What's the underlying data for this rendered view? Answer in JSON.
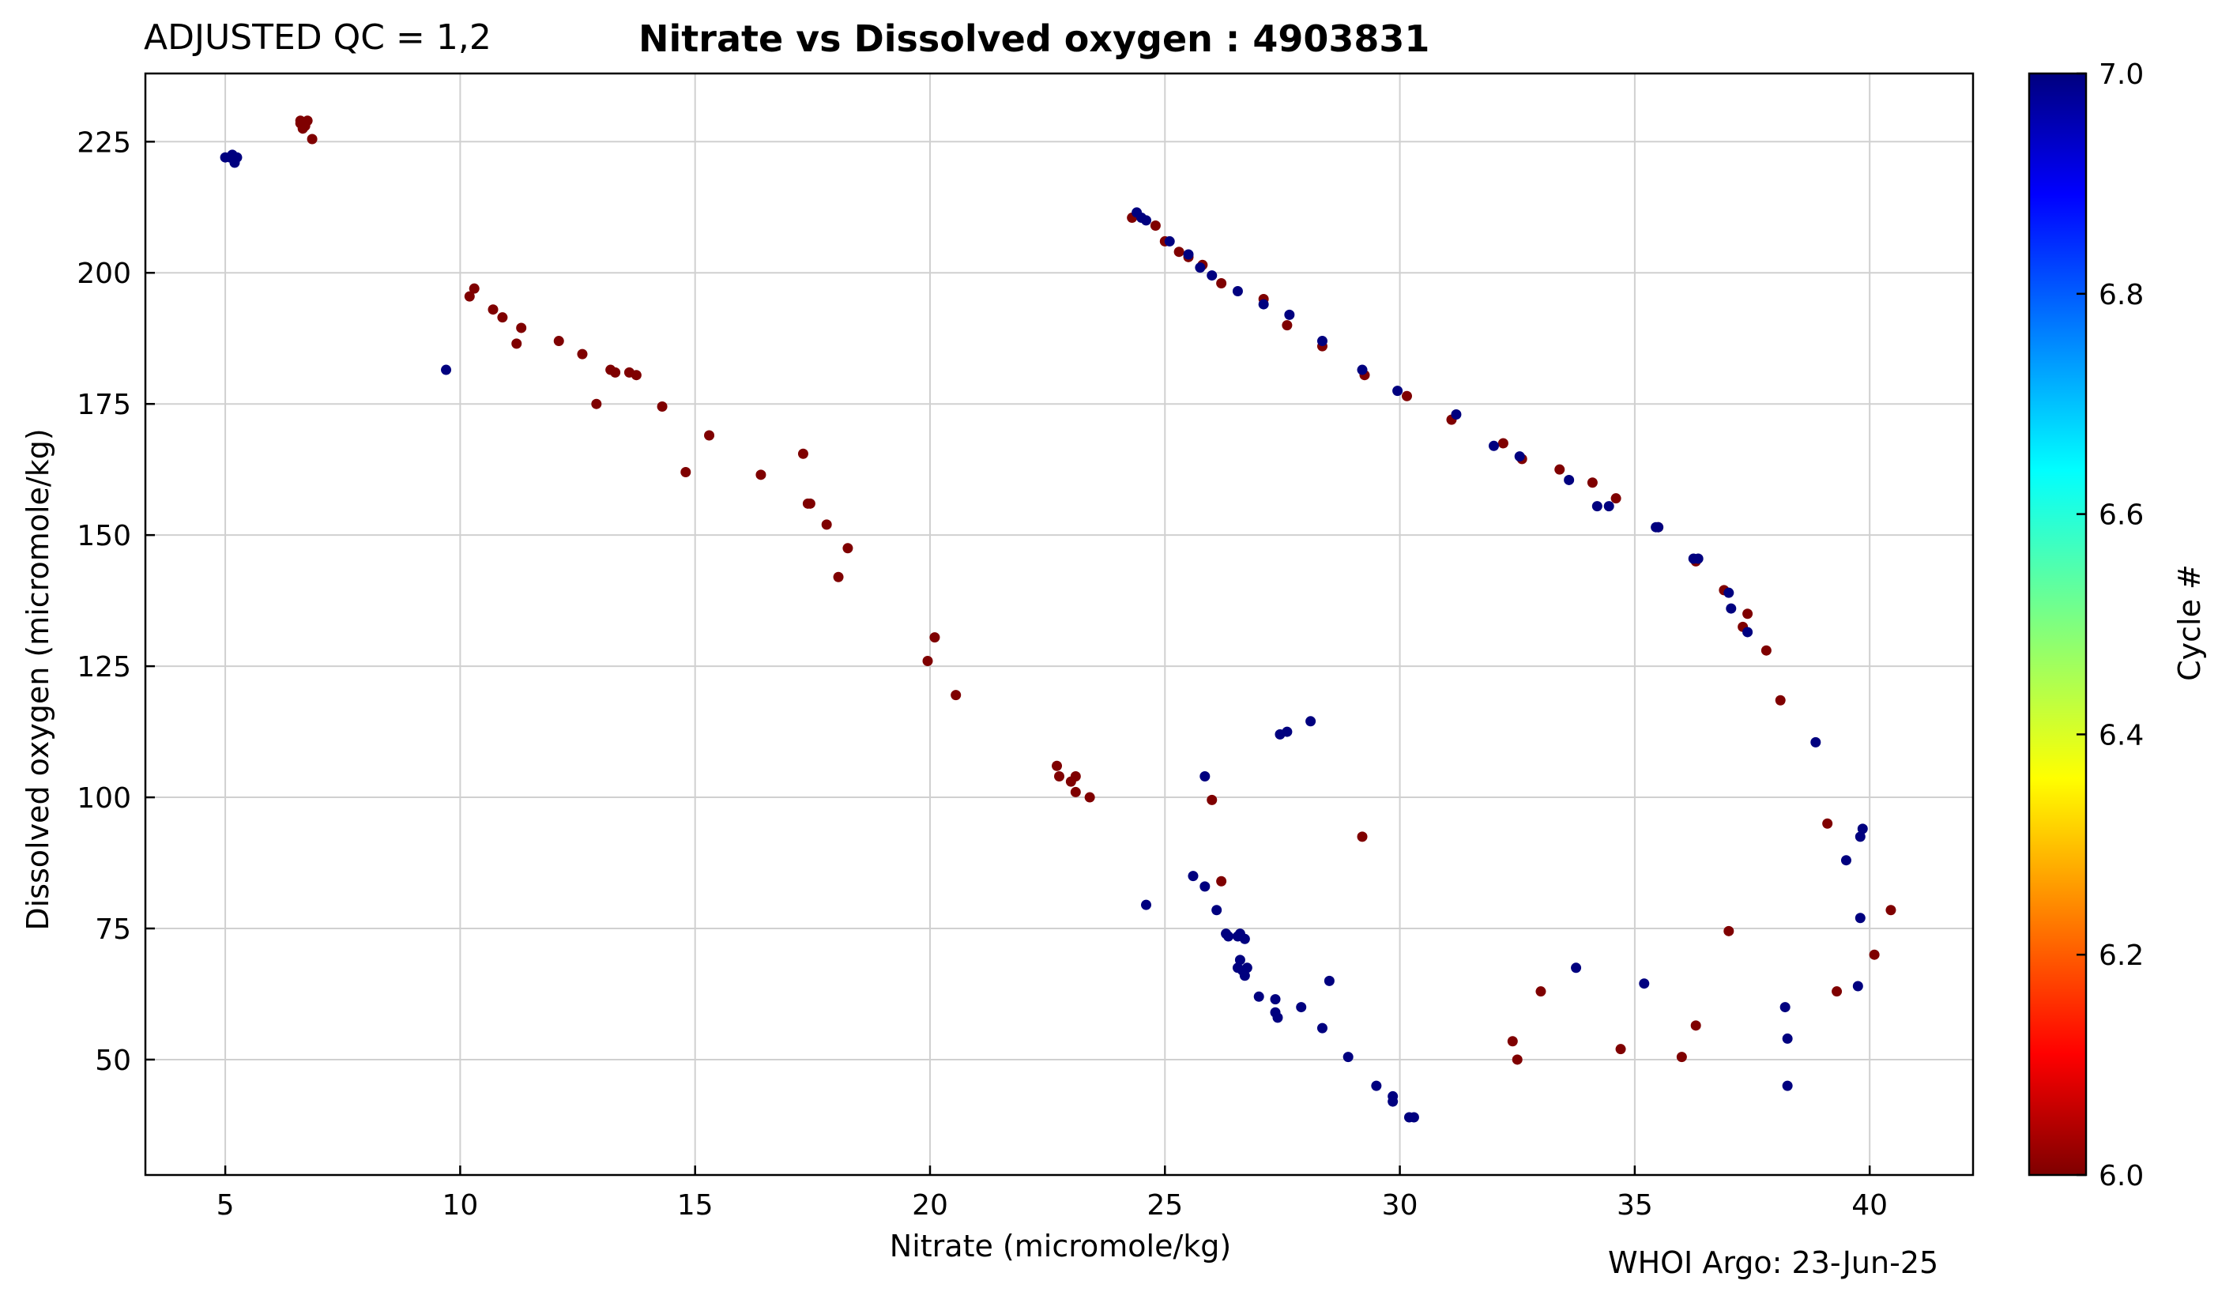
{
  "header": {
    "qc_label": "ADJUSTED QC = 1,2",
    "title": "Nitrate vs Dissolved oxygen : 4903831"
  },
  "footer": {
    "credit": "WHOI Argo: 23-Jun-25"
  },
  "colors": {
    "cycle_6": "#7f0000",
    "cycle_7": "#00007f",
    "grid": "#d0d0d0",
    "axis": "#000000"
  },
  "chart_data": {
    "type": "scatter",
    "title": "Nitrate vs Dissolved oxygen : 4903831",
    "xlabel": "Nitrate  (micromole/kg)",
    "ylabel": "Dissolved oxygen  (micromole/kg)",
    "xlim": [
      3.3,
      42.2
    ],
    "ylim": [
      28,
      238
    ],
    "x_ticks": [
      5,
      10,
      15,
      20,
      25,
      30,
      35,
      40
    ],
    "y_ticks": [
      50,
      75,
      100,
      125,
      150,
      175,
      200,
      225
    ],
    "grid": true,
    "colorbar": {
      "label": "Cycle #",
      "min": 6.0,
      "max": 7.0,
      "ticks": [
        6.0,
        6.2,
        6.4,
        6.6,
        6.8,
        7.0
      ],
      "colormap": "jet"
    },
    "series": [
      {
        "cycle": 6,
        "points": [
          [
            6.6,
            229
          ],
          [
            6.7,
            228
          ],
          [
            6.65,
            227.5
          ],
          [
            6.75,
            229
          ],
          [
            6.6,
            228.5
          ],
          [
            6.85,
            225.5
          ],
          [
            10.2,
            195.5
          ],
          [
            10.3,
            197
          ],
          [
            10.7,
            193
          ],
          [
            10.9,
            191.5
          ],
          [
            11.3,
            189.5
          ],
          [
            11.2,
            186.5
          ],
          [
            12.1,
            187
          ],
          [
            12.6,
            184.5
          ],
          [
            13.2,
            181.5
          ],
          [
            13.3,
            181
          ],
          [
            13.6,
            181
          ],
          [
            13.75,
            180.5
          ],
          [
            12.9,
            175
          ],
          [
            14.3,
            174.5
          ],
          [
            15.3,
            169
          ],
          [
            14.8,
            162
          ],
          [
            16.4,
            161.5
          ],
          [
            17.3,
            165.5
          ],
          [
            17.4,
            156
          ],
          [
            17.45,
            156
          ],
          [
            17.8,
            152
          ],
          [
            18.25,
            147.5
          ],
          [
            18.05,
            142
          ],
          [
            20.1,
            130.5
          ],
          [
            19.95,
            126
          ],
          [
            20.55,
            119.5
          ],
          [
            22.7,
            106
          ],
          [
            22.75,
            104
          ],
          [
            23.0,
            103
          ],
          [
            23.1,
            104
          ],
          [
            23.1,
            101
          ],
          [
            23.4,
            100
          ],
          [
            24.3,
            210.5
          ],
          [
            24.8,
            209
          ],
          [
            25.0,
            206
          ],
          [
            25.3,
            204
          ],
          [
            25.5,
            203
          ],
          [
            25.8,
            201.5
          ],
          [
            26.2,
            198
          ],
          [
            27.1,
            195
          ],
          [
            27.6,
            190
          ],
          [
            28.35,
            186
          ],
          [
            29.25,
            180.5
          ],
          [
            30.15,
            176.5
          ],
          [
            31.1,
            172
          ],
          [
            32.2,
            167.5
          ],
          [
            32.6,
            164.5
          ],
          [
            33.4,
            162.5
          ],
          [
            34.1,
            160
          ],
          [
            34.6,
            157
          ],
          [
            35.5,
            151.5
          ],
          [
            36.3,
            145
          ],
          [
            36.9,
            139.5
          ],
          [
            37.4,
            135
          ],
          [
            37.3,
            132.5
          ],
          [
            37.8,
            128
          ],
          [
            38.1,
            118.5
          ],
          [
            26.0,
            99.5
          ],
          [
            26.2,
            84
          ],
          [
            29.2,
            92.5
          ],
          [
            32.4,
            53.5
          ],
          [
            32.5,
            50
          ],
          [
            33.0,
            63
          ],
          [
            34.7,
            52
          ],
          [
            36.0,
            50.5
          ],
          [
            36.3,
            56.5
          ],
          [
            37.0,
            74.5
          ],
          [
            39.1,
            95
          ],
          [
            39.3,
            63
          ],
          [
            40.1,
            70
          ],
          [
            40.45,
            78.5
          ]
        ]
      },
      {
        "cycle": 7,
        "points": [
          [
            5.0,
            222
          ],
          [
            5.1,
            222
          ],
          [
            5.2,
            221.5
          ],
          [
            5.25,
            222
          ],
          [
            5.2,
            221
          ],
          [
            5.15,
            222.5
          ],
          [
            9.7,
            181.5
          ],
          [
            24.4,
            211.5
          ],
          [
            24.6,
            210
          ],
          [
            24.5,
            210.5
          ],
          [
            25.1,
            206
          ],
          [
            25.5,
            203.5
          ],
          [
            25.75,
            201
          ],
          [
            26.0,
            199.5
          ],
          [
            26.55,
            196.5
          ],
          [
            27.1,
            194
          ],
          [
            27.65,
            192
          ],
          [
            28.35,
            187
          ],
          [
            29.2,
            181.5
          ],
          [
            29.95,
            177.5
          ],
          [
            31.2,
            173
          ],
          [
            32.0,
            167
          ],
          [
            32.55,
            165
          ],
          [
            33.6,
            160.5
          ],
          [
            34.2,
            155.5
          ],
          [
            34.45,
            155.5
          ],
          [
            35.45,
            151.5
          ],
          [
            35.5,
            151.5
          ],
          [
            36.25,
            145.5
          ],
          [
            36.35,
            145.5
          ],
          [
            37.0,
            139
          ],
          [
            37.05,
            136
          ],
          [
            37.4,
            131.5
          ],
          [
            38.85,
            110.5
          ],
          [
            39.8,
            92.5
          ],
          [
            39.85,
            94
          ],
          [
            39.5,
            88
          ],
          [
            39.8,
            77
          ],
          [
            39.75,
            64
          ],
          [
            38.2,
            60
          ],
          [
            38.25,
            54
          ],
          [
            38.25,
            45
          ],
          [
            35.2,
            64.5
          ],
          [
            33.75,
            67.5
          ],
          [
            24.6,
            79.5
          ],
          [
            25.6,
            85
          ],
          [
            25.85,
            104
          ],
          [
            25.85,
            83
          ],
          [
            26.1,
            78.5
          ],
          [
            26.3,
            74
          ],
          [
            26.35,
            73.5
          ],
          [
            26.55,
            73.5
          ],
          [
            26.6,
            74
          ],
          [
            26.7,
            73
          ],
          [
            26.6,
            69
          ],
          [
            26.65,
            67
          ],
          [
            26.7,
            66
          ],
          [
            26.75,
            67.5
          ],
          [
            26.55,
            67.5
          ],
          [
            27.0,
            62
          ],
          [
            27.35,
            61.5
          ],
          [
            27.35,
            59
          ],
          [
            27.4,
            58
          ],
          [
            27.45,
            112
          ],
          [
            27.6,
            112.5
          ],
          [
            28.1,
            114.5
          ],
          [
            27.9,
            60
          ],
          [
            28.35,
            56
          ],
          [
            28.5,
            65
          ],
          [
            28.9,
            50.5
          ],
          [
            29.5,
            45
          ],
          [
            29.85,
            43
          ],
          [
            29.85,
            42
          ],
          [
            30.2,
            39
          ],
          [
            30.3,
            39
          ]
        ]
      }
    ]
  }
}
